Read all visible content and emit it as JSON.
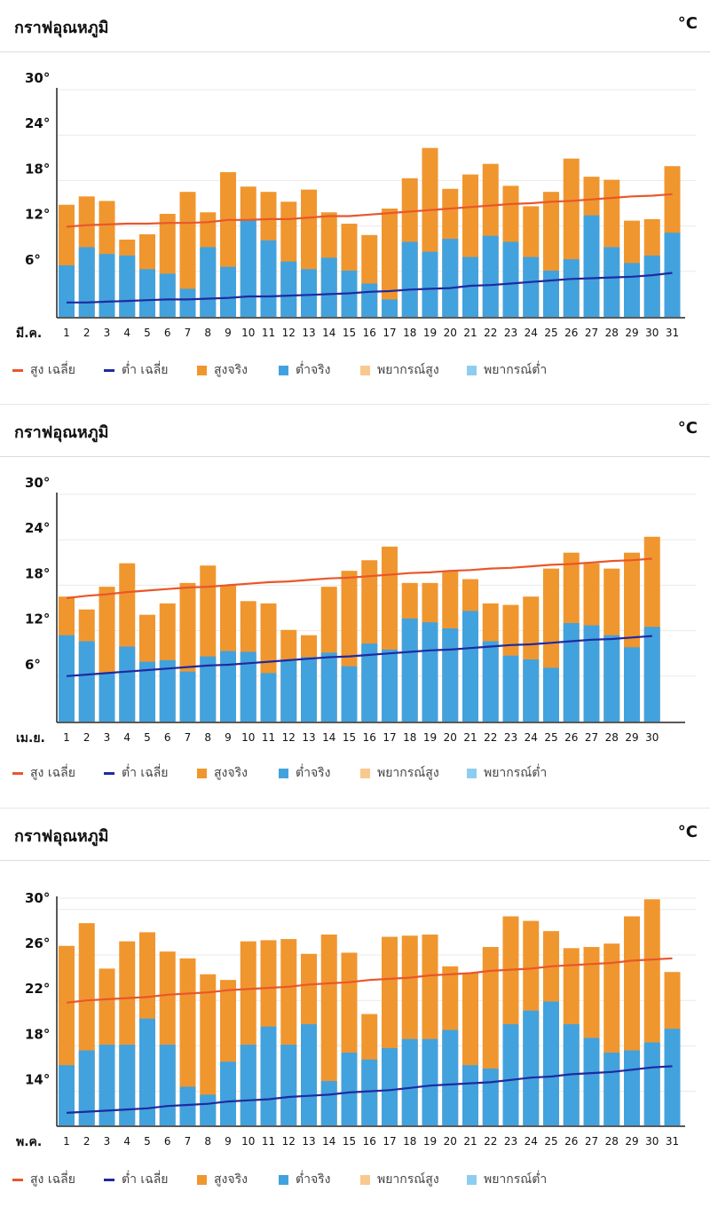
{
  "panels": [
    {
      "title": "กราฟอุณหภูมิ",
      "unit": "°C"
    },
    {
      "title": "กราฟอุณหภูมิ",
      "unit": "°C"
    },
    {
      "title": "กราฟอุณหภูมิ",
      "unit": "°C"
    }
  ],
  "legend": {
    "high_avg": "สูง เฉลี่ย",
    "low_avg": "ต่ำ เฉลี่ย",
    "high_actual": "สูงจริง",
    "low_actual": "ต่ำจริง",
    "high_forecast": "พยากรณ์สูง",
    "low_forecast": "พยากรณ์ต่ำ"
  },
  "colors": {
    "high_bar": "#f0962f",
    "low_bar": "#42a2dd",
    "high_avg_line": "#e8572b",
    "low_avg_line": "#1f2aa0",
    "high_forecast": "#f8c98e",
    "low_forecast": "#8ecdf0",
    "grid": "#e9e9e9"
  },
  "chart_data": [
    {
      "type": "bar",
      "month_label": "มี.ค.",
      "ylim": [
        0,
        30
      ],
      "yticks": [
        6,
        12,
        18,
        24,
        30
      ],
      "ytick_labels": [
        "6°",
        "12°",
        "18°",
        "24°",
        "30°"
      ],
      "categories": [
        "1",
        "2",
        "3",
        "4",
        "5",
        "6",
        "7",
        "8",
        "9",
        "10",
        "11",
        "12",
        "13",
        "14",
        "15",
        "16",
        "17",
        "18",
        "19",
        "20",
        "21",
        "22",
        "23",
        "24",
        "25",
        "26",
        "27",
        "28",
        "29",
        "30",
        "31"
      ],
      "series": [
        {
          "name": "สูงจริง",
          "values": [
            14.8,
            15.9,
            15.3,
            10.2,
            10.9,
            13.6,
            16.5,
            13.8,
            19.1,
            17.2,
            16.5,
            15.2,
            16.8,
            13.8,
            12.3,
            10.8,
            14.3,
            18.3,
            22.3,
            16.9,
            18.8,
            20.2,
            17.3,
            14.6,
            16.5,
            20.9,
            18.5,
            18.1,
            12.7,
            12.9,
            19.9
          ]
        },
        {
          "name": "ต่ำจริง",
          "values": [
            6.8,
            9.2,
            8.3,
            8.1,
            6.3,
            5.7,
            3.7,
            9.2,
            6.6,
            12.8,
            10.1,
            7.3,
            6.3,
            7.8,
            6.1,
            4.4,
            2.3,
            9.9,
            8.6,
            10.3,
            7.9,
            10.7,
            9.9,
            7.9,
            6.1,
            7.6,
            13.4,
            9.2,
            7.1,
            8.1,
            11.1
          ]
        },
        {
          "name": "สูง เฉลี่ย",
          "values": [
            11.9,
            12.1,
            12.2,
            12.3,
            12.3,
            12.4,
            12.4,
            12.5,
            12.8,
            12.8,
            12.9,
            12.9,
            13.1,
            13.3,
            13.3,
            13.5,
            13.7,
            13.9,
            14.1,
            14.3,
            14.5,
            14.7,
            14.9,
            15.0,
            15.2,
            15.3,
            15.5,
            15.7,
            15.9,
            16.0,
            16.2
          ]
        },
        {
          "name": "ต่ำ เฉลี่ย",
          "values": [
            1.9,
            1.9,
            2.0,
            2.1,
            2.2,
            2.3,
            2.3,
            2.4,
            2.5,
            2.7,
            2.7,
            2.8,
            2.9,
            3.0,
            3.1,
            3.3,
            3.4,
            3.6,
            3.7,
            3.8,
            4.1,
            4.2,
            4.4,
            4.6,
            4.8,
            5.0,
            5.1,
            5.2,
            5.3,
            5.5,
            5.8
          ]
        }
      ]
    },
    {
      "type": "bar",
      "month_label": "เม.ย.",
      "ylim": [
        0,
        30
      ],
      "yticks": [
        6,
        12,
        18,
        24,
        30
      ],
      "ytick_labels": [
        "6°",
        "12°",
        "18°",
        "24°",
        "30°"
      ],
      "categories": [
        "1",
        "2",
        "3",
        "4",
        "5",
        "6",
        "7",
        "8",
        "9",
        "10",
        "11",
        "12",
        "13",
        "14",
        "15",
        "16",
        "17",
        "18",
        "19",
        "20",
        "21",
        "22",
        "23",
        "24",
        "25",
        "26",
        "27",
        "28",
        "29",
        "30"
      ],
      "series": [
        {
          "name": "สูงจริง",
          "values": [
            16.5,
            14.8,
            17.8,
            20.9,
            14.1,
            15.6,
            18.3,
            20.6,
            18.0,
            15.9,
            15.6,
            12.1,
            11.4,
            17.8,
            19.9,
            21.3,
            23.1,
            18.3,
            18.3,
            19.9,
            18.8,
            15.6,
            15.4,
            16.5,
            20.2,
            22.3,
            20.9,
            20.2,
            22.3,
            24.4
          ]
        },
        {
          "name": "ต่ำจริง",
          "values": [
            11.4,
            10.6,
            6.4,
            9.9,
            7.9,
            8.1,
            6.6,
            8.6,
            9.3,
            9.2,
            6.4,
            8.0,
            8.5,
            9.1,
            7.3,
            10.3,
            9.5,
            13.6,
            13.1,
            12.3,
            14.6,
            10.6,
            8.7,
            8.2,
            7.1,
            13.0,
            12.7,
            11.4,
            9.8,
            12.5
          ]
        },
        {
          "name": "สูง เฉลี่ย",
          "values": [
            16.3,
            16.6,
            16.8,
            17.1,
            17.3,
            17.5,
            17.7,
            17.8,
            18.0,
            18.2,
            18.4,
            18.5,
            18.7,
            18.9,
            19.0,
            19.2,
            19.4,
            19.6,
            19.7,
            19.9,
            20.0,
            20.2,
            20.3,
            20.5,
            20.7,
            20.8,
            21.0,
            21.2,
            21.3,
            21.5
          ]
        },
        {
          "name": "ต่ำ เฉลี่ย",
          "values": [
            6.0,
            6.2,
            6.4,
            6.6,
            6.8,
            7.0,
            7.2,
            7.4,
            7.5,
            7.7,
            7.9,
            8.1,
            8.3,
            8.5,
            8.6,
            8.8,
            9.0,
            9.2,
            9.4,
            9.5,
            9.7,
            9.9,
            10.1,
            10.2,
            10.4,
            10.6,
            10.8,
            10.9,
            11.1,
            11.3
          ]
        }
      ]
    },
    {
      "type": "bar",
      "month_label": "พ.ค.",
      "ylim": [
        11,
        31
      ],
      "yticks": [
        14,
        18,
        22,
        26,
        30
      ],
      "ytick_labels": [
        "14°",
        "18°",
        "22°",
        "26°",
        "30°"
      ],
      "categories": [
        "1",
        "2",
        "3",
        "4",
        "5",
        "6",
        "7",
        "8",
        "9",
        "10",
        "11",
        "12",
        "13",
        "14",
        "15",
        "16",
        "17",
        "18",
        "19",
        "20",
        "21",
        "22",
        "23",
        "24",
        "25",
        "26",
        "27",
        "28",
        "29",
        "30",
        "31"
      ],
      "series": [
        {
          "name": "สูงจริง",
          "values": [
            26.8,
            28.8,
            24.8,
            27.2,
            28.0,
            26.3,
            25.7,
            24.3,
            23.8,
            27.2,
            27.3,
            27.4,
            26.1,
            27.8,
            26.2,
            20.8,
            27.6,
            27.7,
            27.8,
            25.0,
            24.4,
            26.7,
            29.4,
            29.0,
            28.1,
            26.6,
            26.7,
            27.0,
            29.4,
            30.9,
            24.5
          ]
        },
        {
          "name": "ต่ำจริง",
          "values": [
            16.3,
            17.6,
            18.1,
            18.1,
            20.4,
            18.1,
            14.4,
            13.7,
            16.6,
            18.1,
            19.7,
            18.1,
            19.9,
            14.9,
            17.4,
            16.8,
            17.8,
            18.6,
            18.6,
            19.4,
            16.3,
            16.0,
            19.9,
            21.1,
            21.9,
            19.9,
            18.7,
            17.4,
            17.6,
            18.3,
            19.5
          ]
        },
        {
          "name": "สูง เฉลี่ย",
          "values": [
            21.8,
            22.0,
            22.1,
            22.2,
            22.3,
            22.5,
            22.6,
            22.7,
            22.9,
            23.0,
            23.1,
            23.2,
            23.4,
            23.5,
            23.6,
            23.8,
            23.9,
            24.0,
            24.2,
            24.3,
            24.4,
            24.6,
            24.7,
            24.8,
            25.0,
            25.1,
            25.2,
            25.3,
            25.5,
            25.6,
            25.7
          ]
        },
        {
          "name": "ต่ำ เฉลี่ย",
          "values": [
            12.1,
            12.2,
            12.3,
            12.4,
            12.5,
            12.7,
            12.8,
            12.9,
            13.1,
            13.2,
            13.3,
            13.5,
            13.6,
            13.7,
            13.9,
            14.0,
            14.1,
            14.3,
            14.5,
            14.6,
            14.7,
            14.8,
            15.0,
            15.2,
            15.3,
            15.5,
            15.6,
            15.7,
            15.9,
            16.1,
            16.2
          ]
        }
      ]
    }
  ]
}
